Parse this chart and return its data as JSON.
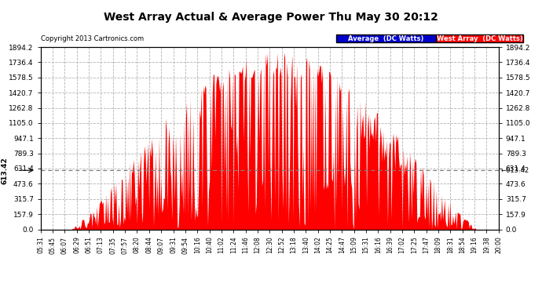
{
  "title": "West Array Actual & Average Power Thu May 30 20:12",
  "copyright": "Copyright 2013 Cartronics.com",
  "legend_avg_label": "Average  (DC Watts)",
  "legend_west_label": "West Array  (DC Watts)",
  "avg_value": 613.42,
  "ymax": 1894.2,
  "ymin": 0.0,
  "yticks": [
    0.0,
    157.9,
    315.7,
    473.6,
    631.4,
    789.3,
    947.1,
    1105.0,
    1262.8,
    1420.7,
    1578.5,
    1736.4,
    1894.2
  ],
  "background_color": "#ffffff",
  "plot_bg_color": "#ffffff",
  "bar_color": "#ff0000",
  "avg_line_color": "#808080",
  "grid_color": "#aaaaaa",
  "title_color": "#000000",
  "legend_avg_bg": "#0000cd",
  "legend_west_bg": "#ff0000",
  "figwidth": 6.9,
  "figheight": 3.75,
  "dpi": 100,
  "x_tick_labels": [
    "05:31",
    "05:45",
    "06:07",
    "06:29",
    "06:51",
    "07:13",
    "07:35",
    "07:57",
    "08:20",
    "08:44",
    "09:07",
    "09:31",
    "09:54",
    "10:16",
    "10:40",
    "11:02",
    "11:24",
    "11:46",
    "12:08",
    "12:30",
    "12:52",
    "13:18",
    "13:40",
    "14:02",
    "14:25",
    "14:47",
    "15:09",
    "15:31",
    "16:16",
    "16:39",
    "17:02",
    "17:25",
    "17:47",
    "18:09",
    "18:31",
    "18:54",
    "19:16",
    "19:38",
    "20:00"
  ]
}
